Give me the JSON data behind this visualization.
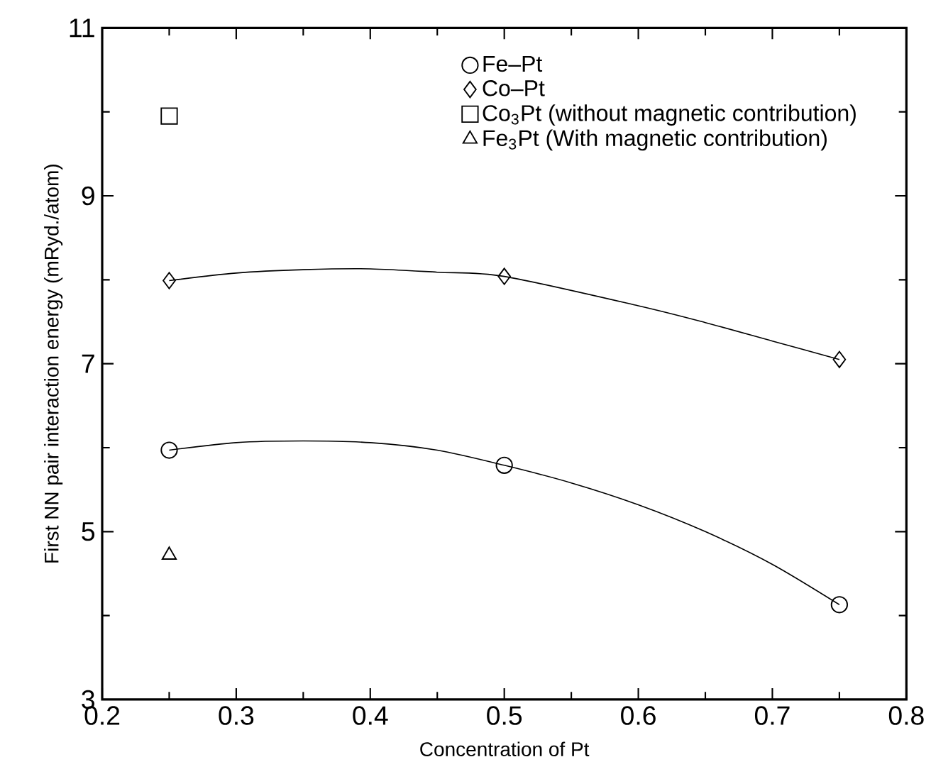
{
  "chart_data": {
    "type": "scatter",
    "xlabel": "Concentration of Pt",
    "ylabel": "First NN pair interaction energy (mRyd./atom)",
    "xlim": [
      0.2,
      0.8
    ],
    "xticks": [
      0.2,
      0.3,
      0.4,
      0.5,
      0.6,
      0.7,
      0.8
    ],
    "ylim": [
      3,
      11
    ],
    "yticks": [
      3,
      5,
      7,
      9,
      11
    ],
    "grid": false,
    "legend": "top right",
    "series": [
      {
        "name": "Fe–Pt",
        "color": "#000000",
        "marker": "circle",
        "x": [
          0.25,
          0.5,
          0.75
        ],
        "values": [
          5.97,
          5.79,
          4.13
        ]
      },
      {
        "name": "Co–Pt",
        "color": "#000000",
        "marker": "diamond",
        "x": [
          0.25,
          0.5,
          0.75
        ],
        "values": [
          7.99,
          8.04,
          7.05
        ]
      },
      {
        "name": "Co$_{3}$Pt (without magnetic contribution)",
        "color": "#000000",
        "marker": "square",
        "x": [
          0.25
        ],
        "values": [
          9.95
        ]
      },
      {
        "name": "Fe$_{3}$Pt (With magnetic contribution)",
        "color": "#000000",
        "marker": "triangle",
        "x": [
          0.25
        ],
        "values": [
          4.72
        ]
      },
      {
        "type": "line",
        "color": "#000000",
        "marker": "none",
        "line_style": "solid",
        "x": [
          0.25,
          0.3,
          0.35,
          0.4,
          0.45,
          0.5,
          0.55,
          0.6,
          0.65,
          0.7,
          0.75
        ],
        "values": [
          5.97,
          6.06,
          6.08,
          6.06,
          5.97,
          5.79,
          5.58,
          5.32,
          5.0,
          4.61,
          4.13
        ]
      },
      {
        "type": "line",
        "color": "#000000",
        "marker": "none",
        "line_style": "solid",
        "x": [
          0.25,
          0.3,
          0.35,
          0.4,
          0.45,
          0.5,
          0.6,
          0.65,
          0.7,
          0.75
        ],
        "values": [
          7.99,
          8.08,
          8.12,
          8.13,
          8.09,
          8.04,
          7.69,
          7.49,
          7.27,
          7.05
        ]
      }
    ]
  }
}
